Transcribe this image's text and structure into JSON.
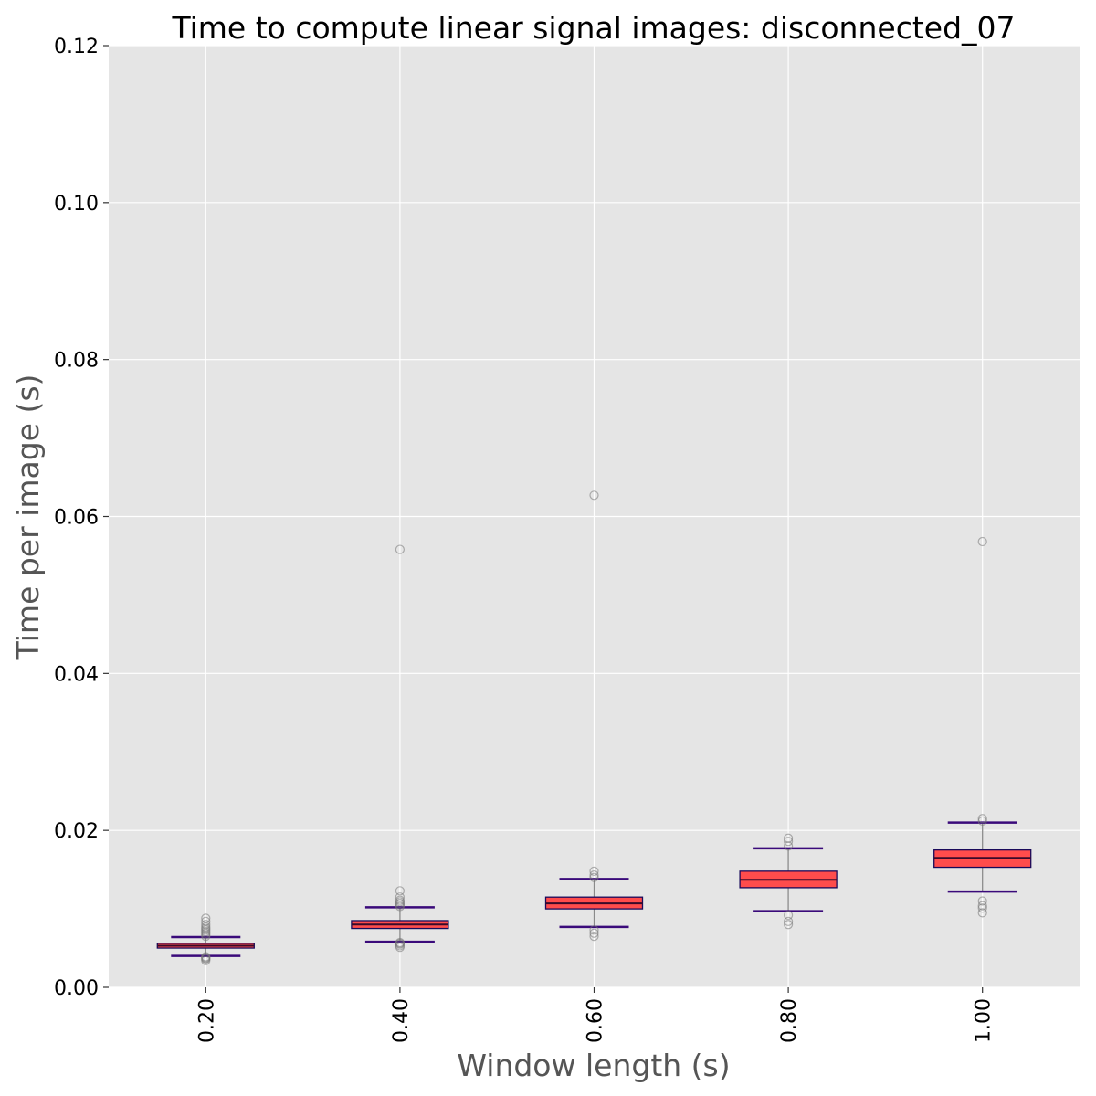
{
  "chart_data": {
    "type": "box",
    "title": "Time to compute linear signal images: disconnected_07",
    "xlabel": "Window length (s)",
    "ylabel": "Time per image (s)",
    "categories": [
      "0.20",
      "0.40",
      "0.60",
      "0.80",
      "1.00"
    ],
    "ylim": [
      0.0,
      0.12
    ],
    "yticks": [
      "0.00",
      "0.02",
      "0.04",
      "0.06",
      "0.08",
      "0.10",
      "0.12"
    ],
    "grid": true,
    "colors": {
      "background": "#e5e5e5",
      "grid": "#ffffff",
      "box_fill": "#ff4c4c",
      "box_edge": "#1a0a5a",
      "median": "#3a0a2a",
      "whisker_cap": "#3a0a7a",
      "whisker": "#8a8a8a",
      "flier": "#777777"
    },
    "boxes": [
      {
        "category": "0.20",
        "whislo": 0.004,
        "q1": 0.005,
        "med": 0.0053,
        "q3": 0.0056,
        "whishi": 0.0064,
        "fliers": [
          0.0034,
          0.0036,
          0.0037,
          0.0038,
          0.0039,
          0.0065,
          0.0067,
          0.0069,
          0.0071,
          0.0073,
          0.0075,
          0.0077,
          0.008,
          0.0084,
          0.0088
        ]
      },
      {
        "category": "0.40",
        "whislo": 0.0058,
        "q1": 0.0075,
        "med": 0.008,
        "q3": 0.0085,
        "whishi": 0.0102,
        "fliers": [
          0.0051,
          0.0053,
          0.0055,
          0.0056,
          0.0057,
          0.0103,
          0.0105,
          0.0107,
          0.0109,
          0.0111,
          0.0115,
          0.0123,
          0.0558
        ]
      },
      {
        "category": "0.60",
        "whislo": 0.0077,
        "q1": 0.01,
        "med": 0.0107,
        "q3": 0.0115,
        "whishi": 0.0138,
        "fliers": [
          0.0065,
          0.0069,
          0.0073,
          0.014,
          0.0143,
          0.0148,
          0.0627
        ]
      },
      {
        "category": "0.80",
        "whislo": 0.0097,
        "q1": 0.0127,
        "med": 0.0137,
        "q3": 0.0148,
        "whishi": 0.0177,
        "fliers": [
          0.008,
          0.0084,
          0.0092,
          0.018,
          0.0186,
          0.019
        ]
      },
      {
        "category": "1.00",
        "whislo": 0.0122,
        "q1": 0.0153,
        "med": 0.0165,
        "q3": 0.0175,
        "whishi": 0.021,
        "fliers": [
          0.0095,
          0.0101,
          0.0104,
          0.011,
          0.0212,
          0.0215,
          0.0568
        ]
      }
    ]
  }
}
